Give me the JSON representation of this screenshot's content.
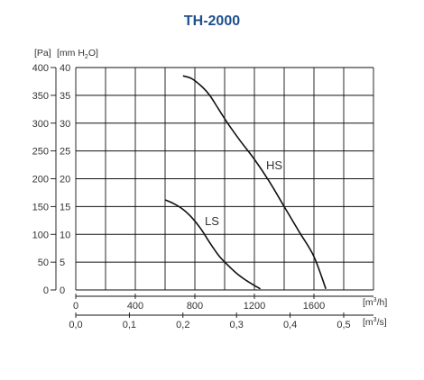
{
  "chart_data": {
    "type": "line",
    "title": "TH-2000",
    "y_unit_pa": "[Pa]",
    "y_unit_mm_parts": [
      "[mm H",
      "2",
      "O]"
    ],
    "x_unit_m3h_parts": [
      "[m",
      "3",
      "/h]"
    ],
    "x_unit_m3s_parts": [
      "[m",
      "3",
      "/s]"
    ],
    "ylim_pa": [
      0,
      400
    ],
    "xlim_m3h": [
      0,
      2000
    ],
    "y_ticks_pa": [
      "0",
      "50",
      "100",
      "150",
      "200",
      "250",
      "300",
      "350",
      "400"
    ],
    "y_ticks_mm": [
      "0",
      "5",
      "10",
      "15",
      "20",
      "25",
      "30",
      "35",
      "40"
    ],
    "x_ticks_m3h": [
      "0",
      "400",
      "800",
      "1200",
      "1600"
    ],
    "x_ticks_m3s": [
      "0,0",
      "0,1",
      "0,2",
      "0,3",
      "0,4",
      "0,5"
    ],
    "grid": true,
    "series": [
      {
        "name": "HS",
        "x": [
          720,
          780,
          850,
          900,
          960,
          1020,
          1100,
          1200,
          1300,
          1400,
          1500,
          1600,
          1680
        ],
        "y": [
          385,
          380,
          365,
          350,
          325,
          300,
          270,
          235,
          195,
          150,
          105,
          60,
          2
        ]
      },
      {
        "name": "LS",
        "x": [
          600,
          660,
          720,
          780,
          840,
          900,
          960,
          1020,
          1080,
          1140,
          1200,
          1240
        ],
        "y": [
          162,
          155,
          145,
          130,
          110,
          85,
          62,
          45,
          30,
          18,
          8,
          2
        ]
      }
    ]
  }
}
